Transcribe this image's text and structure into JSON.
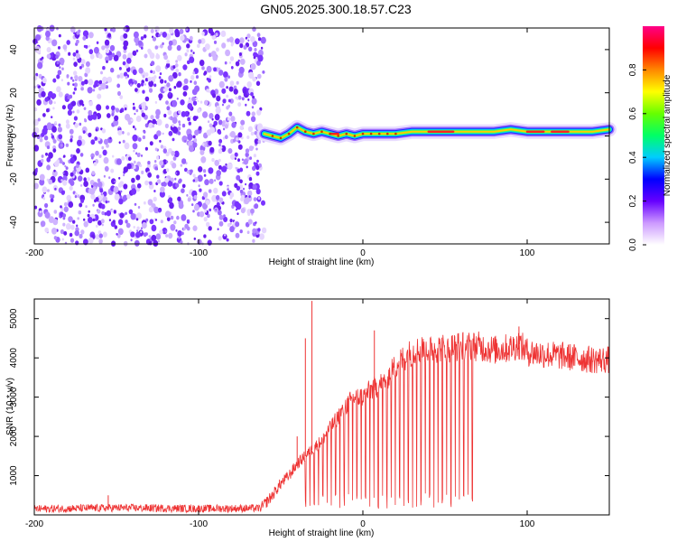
{
  "title": "GN05.2025.300.18.57.C23",
  "chart_data": [
    {
      "type": "heatmap",
      "name": "spectrogram",
      "xlabel": "Height of straight line (km)",
      "ylabel": "Frequency (Hz)",
      "xlim": [
        -200,
        150
      ],
      "ylim": [
        -50,
        50
      ],
      "xticks": [
        -200,
        -100,
        0,
        100
      ],
      "yticks": [
        -40,
        -20,
        0,
        20,
        40
      ],
      "noise_region_x": [
        -200,
        -60
      ],
      "ridge": {
        "x": [
          -60,
          -55,
          -50,
          -45,
          -40,
          -35,
          -30,
          -25,
          -20,
          -15,
          -10,
          -5,
          0,
          10,
          20,
          30,
          40,
          50,
          60,
          70,
          80,
          90,
          100,
          110,
          120,
          130,
          140,
          150
        ],
        "freq": [
          1,
          0,
          -1,
          1,
          4,
          2,
          1,
          2,
          1,
          0,
          1,
          0,
          1,
          1,
          1,
          2,
          2,
          2,
          2,
          2,
          2,
          3,
          2,
          2,
          2,
          2,
          2,
          3
        ]
      },
      "colorbar": {
        "label": "Normalized spectral amplitude",
        "ticks": [
          "0.0",
          "0.2",
          "0.4",
          "0.6",
          "0.8"
        ],
        "range": [
          0,
          1
        ]
      }
    },
    {
      "type": "line",
      "name": "snr",
      "xlabel": "Height of straight line (km)",
      "ylabel": "SNR (10 * v/v)",
      "xlim": [
        -200,
        150
      ],
      "ylim": [
        0,
        5500
      ],
      "xticks": [
        -200,
        -100,
        0,
        100
      ],
      "yticks": [
        1000,
        2000,
        3000,
        4000,
        5000
      ],
      "color": "#ee3333",
      "envelope": {
        "x": [
          -200,
          -150,
          -100,
          -62,
          -55,
          -50,
          -45,
          -40,
          -35,
          -30,
          -25,
          -20,
          -15,
          -10,
          -5,
          0,
          5,
          10,
          15,
          20,
          25,
          30,
          40,
          50,
          60,
          70,
          80,
          90,
          95,
          100,
          110,
          120,
          130,
          140,
          150
        ],
        "y": [
          150,
          180,
          160,
          170,
          500,
          800,
          1000,
          1300,
          1500,
          1700,
          1900,
          2200,
          2500,
          2800,
          3000,
          3000,
          3200,
          3300,
          3500,
          3800,
          4000,
          4150,
          4250,
          4250,
          4300,
          4300,
          4200,
          4250,
          4350,
          4150,
          4100,
          4050,
          4000,
          3950,
          3950
        ]
      },
      "spikes": [
        {
          "x": -155,
          "y": 500
        },
        {
          "x": -40,
          "y": 2000
        },
        {
          "x": -35,
          "y": 4500
        },
        {
          "x": -31,
          "y": 5450
        },
        {
          "x": 7,
          "y": 4700
        },
        {
          "x": 95,
          "y": 4800
        }
      ],
      "dips_region_x": [
        -35,
        68
      ]
    }
  ]
}
